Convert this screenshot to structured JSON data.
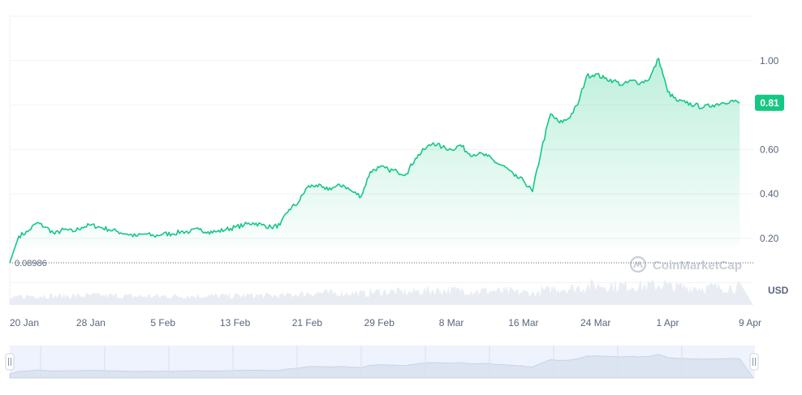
{
  "chart_data": {
    "type": "line",
    "title": "",
    "xlabel": "",
    "ylabel": "",
    "currency_label": "USD",
    "watermark": "CoinMarketCap",
    "x_ticks": [
      "20 Jan",
      "28 Jan",
      "5 Feb",
      "13 Feb",
      "21 Feb",
      "29 Feb",
      "8 Mar",
      "16 Mar",
      "24 Mar",
      "1 Apr",
      "9 Apr"
    ],
    "y_ticks": [
      "0.20",
      "0.40",
      "0.60",
      "0.80",
      "1.00"
    ],
    "ylim": [
      -0.1,
      1.2
    ],
    "start_price_label": "0.08986",
    "start_price": 0.08986,
    "current_price_label": "0.81",
    "current_price": 0.81,
    "grid": true,
    "line_color": "#16c784",
    "series": [
      {
        "x": [
          "2024-01-19",
          "2024-01-20",
          "2024-01-21",
          "2024-01-22",
          "2024-01-23",
          "2024-01-24",
          "2024-01-25",
          "2024-01-26",
          "2024-01-27",
          "2024-01-28",
          "2024-01-29",
          "2024-01-30",
          "2024-01-31",
          "2024-02-01",
          "2024-02-02",
          "2024-02-03",
          "2024-02-04",
          "2024-02-05",
          "2024-02-06",
          "2024-02-07",
          "2024-02-08",
          "2024-02-09",
          "2024-02-10",
          "2024-02-11",
          "2024-02-12",
          "2024-02-13",
          "2024-02-14",
          "2024-02-15",
          "2024-02-16",
          "2024-02-17",
          "2024-02-18",
          "2024-02-19",
          "2024-02-20",
          "2024-02-21",
          "2024-02-22",
          "2024-02-23",
          "2024-02-24",
          "2024-02-25",
          "2024-02-26",
          "2024-02-27",
          "2024-02-28",
          "2024-02-29",
          "2024-03-01",
          "2024-03-02",
          "2024-03-03",
          "2024-03-04",
          "2024-03-05",
          "2024-03-06",
          "2024-03-07",
          "2024-03-08",
          "2024-03-09",
          "2024-03-10",
          "2024-03-11",
          "2024-03-12",
          "2024-03-13",
          "2024-03-14",
          "2024-03-15",
          "2024-03-16",
          "2024-03-17",
          "2024-03-18",
          "2024-03-19",
          "2024-03-20",
          "2024-03-21",
          "2024-03-22",
          "2024-03-23",
          "2024-03-24",
          "2024-03-25",
          "2024-03-26",
          "2024-03-27",
          "2024-03-28",
          "2024-03-29",
          "2024-03-30",
          "2024-03-31",
          "2024-04-01",
          "2024-04-02",
          "2024-04-03",
          "2024-04-04",
          "2024-04-05",
          "2024-04-06",
          "2024-04-07",
          "2024-04-08",
          "2024-04-09"
        ],
        "values": [
          0.09,
          0.21,
          0.23,
          0.27,
          0.25,
          0.22,
          0.24,
          0.23,
          0.25,
          0.26,
          0.25,
          0.24,
          0.23,
          0.22,
          0.21,
          0.22,
          0.21,
          0.22,
          0.22,
          0.23,
          0.23,
          0.24,
          0.23,
          0.23,
          0.24,
          0.25,
          0.26,
          0.27,
          0.26,
          0.25,
          0.26,
          0.33,
          0.36,
          0.43,
          0.44,
          0.42,
          0.43,
          0.44,
          0.41,
          0.39,
          0.5,
          0.52,
          0.51,
          0.5,
          0.49,
          0.56,
          0.6,
          0.63,
          0.61,
          0.6,
          0.62,
          0.58,
          0.58,
          0.57,
          0.54,
          0.52,
          0.48,
          0.46,
          0.41,
          0.6,
          0.76,
          0.72,
          0.74,
          0.8,
          0.93,
          0.94,
          0.92,
          0.91,
          0.89,
          0.91,
          0.9,
          0.92,
          1.01,
          0.86,
          0.82,
          0.81,
          0.8,
          0.79,
          0.8,
          0.81,
          0.82,
          0.81
        ]
      }
    ]
  }
}
